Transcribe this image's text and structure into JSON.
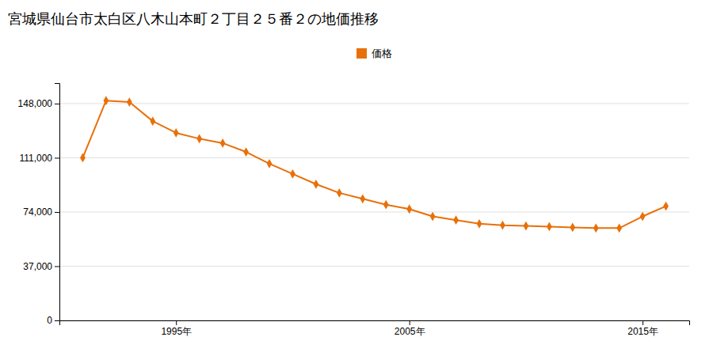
{
  "chart_data": {
    "type": "line",
    "title": "宮城県仙台市太白区八木山本町２丁目２５番２の地価推移",
    "x": [
      1991,
      1992,
      1993,
      1994,
      1995,
      1996,
      1997,
      1998,
      1999,
      2000,
      2001,
      2002,
      2003,
      2004,
      2005,
      2006,
      2007,
      2008,
      2009,
      2010,
      2011,
      2012,
      2013,
      2014,
      2015,
      2016
    ],
    "series": [
      {
        "name": "価格",
        "color": "#E8700A",
        "marker": "diamond",
        "values": [
          111000,
          150000,
          149000,
          136000,
          128000,
          124000,
          121000,
          115000,
          107000,
          100000,
          93000,
          87000,
          83000,
          79000,
          76000,
          71000,
          68500,
          66000,
          65000,
          64500,
          64000,
          63500,
          63000,
          63000,
          71000,
          78000
        ]
      }
    ],
    "xlim": [
      1990,
      2017
    ],
    "xticks": [
      {
        "value": 1995,
        "label": "1995年"
      },
      {
        "value": 2005,
        "label": "2005年"
      },
      {
        "value": 2015,
        "label": "2015年"
      }
    ],
    "ylim": [
      0,
      162000
    ],
    "yticks": [
      0,
      {
        "value": 37000,
        "label": "37,000"
      },
      {
        "value": 74000,
        "label": "74,000"
      },
      {
        "value": 111000,
        "label": "111,000"
      },
      {
        "value": 148000,
        "label": "148,000"
      }
    ],
    "grid": true,
    "legend": "top"
  }
}
